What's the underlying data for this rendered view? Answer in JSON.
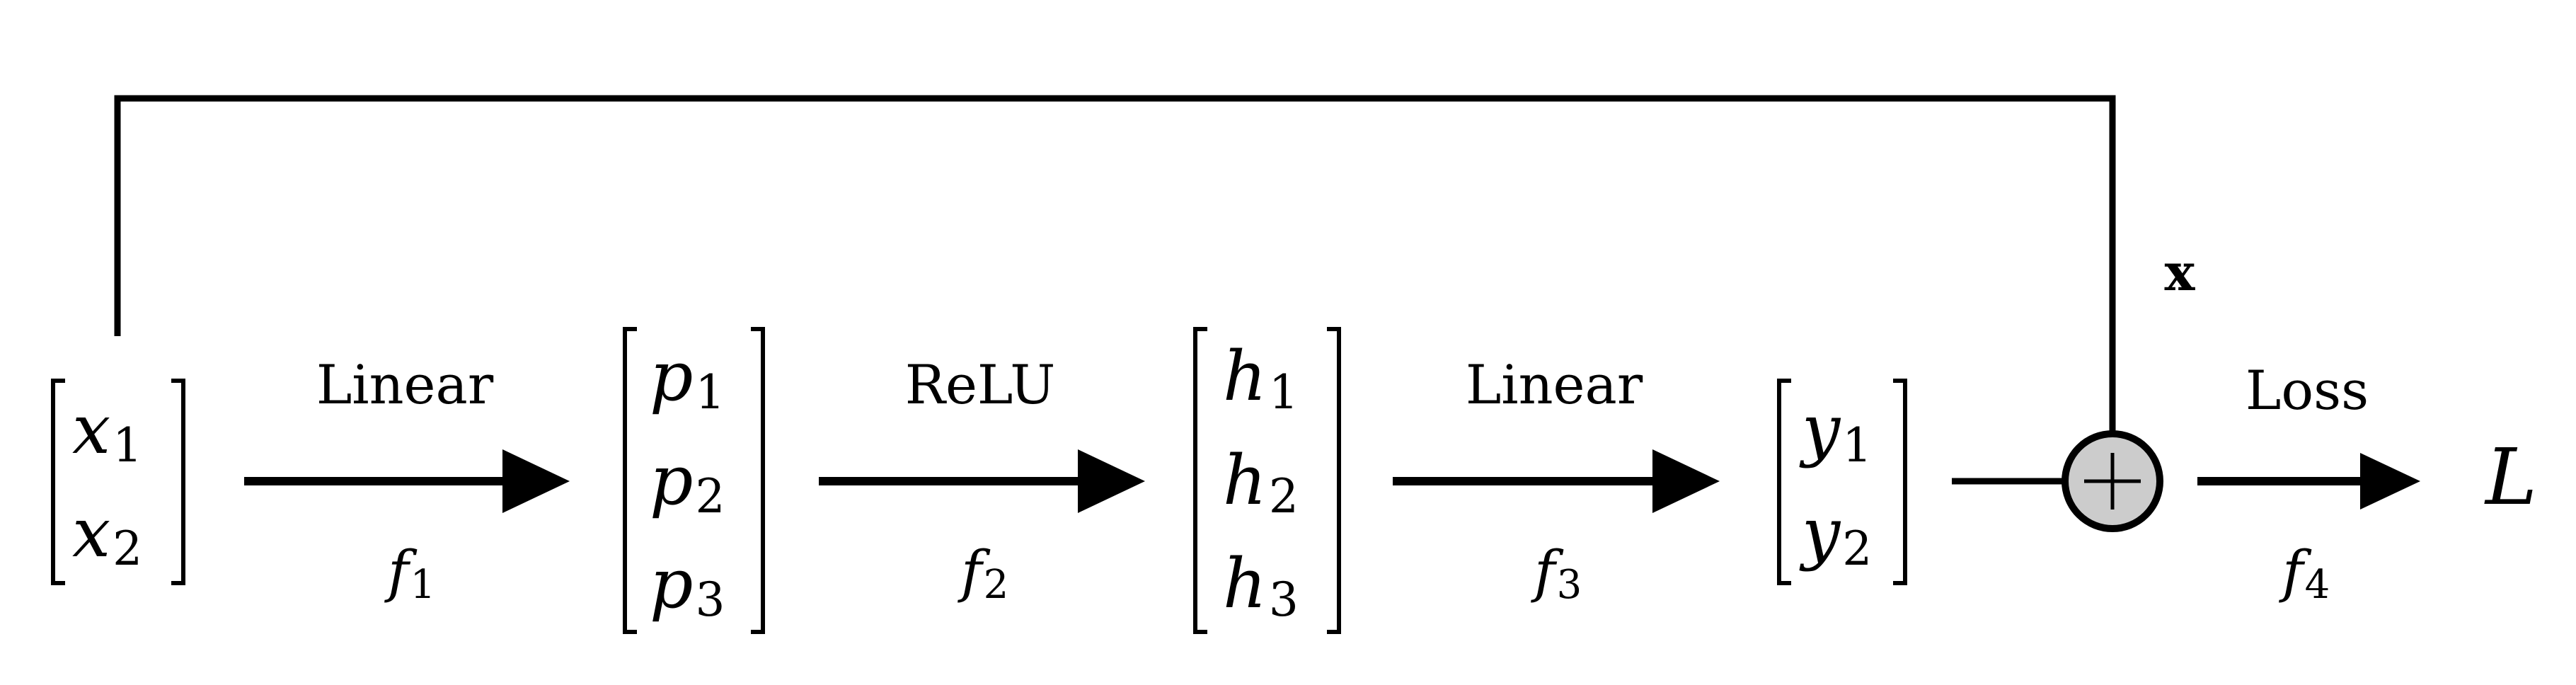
{
  "vectors": {
    "x": {
      "symbol": "x",
      "subs": [
        "1",
        "2"
      ]
    },
    "p": {
      "symbol": "p",
      "subs": [
        "1",
        "2",
        "3"
      ]
    },
    "h": {
      "symbol": "h",
      "subs": [
        "1",
        "2",
        "3"
      ]
    },
    "y": {
      "symbol": "y",
      "subs": [
        "1",
        "2"
      ]
    }
  },
  "ops": [
    {
      "label": "Linear",
      "func": "f",
      "sub": "1"
    },
    {
      "label": "ReLU",
      "func": "f",
      "sub": "2"
    },
    {
      "label": "Linear",
      "func": "f",
      "sub": "3"
    },
    {
      "label": "Loss",
      "func": "f",
      "sub": "4"
    }
  ],
  "skip_label": "x",
  "sum_symbol": "+",
  "output": "L",
  "colors": {
    "stroke": "#000000",
    "sum_fill": "#cccccc",
    "background": "#ffffff"
  }
}
